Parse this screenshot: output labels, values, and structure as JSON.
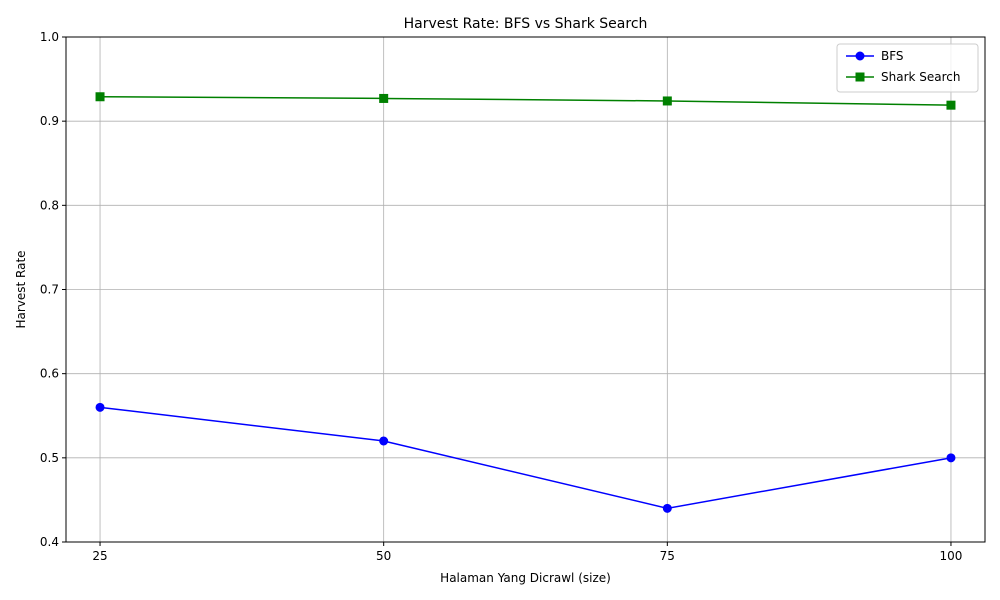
{
  "chart_data": {
    "type": "line",
    "title": "Harvest Rate: BFS vs Shark Search",
    "xlabel": "Halaman Yang Dicrawl (size)",
    "ylabel": "Harvest Rate",
    "x": [
      25,
      50,
      75,
      100
    ],
    "x_tick_labels": [
      "25",
      "50",
      "75",
      "100"
    ],
    "ylim": [
      0.4,
      1.0
    ],
    "y_ticks": [
      0.4,
      0.5,
      0.6,
      0.7,
      0.8,
      0.9,
      1.0
    ],
    "y_tick_labels": [
      "0.4",
      "0.5",
      "0.6",
      "0.7",
      "0.8",
      "0.9",
      "1.0"
    ],
    "grid": true,
    "legend_position": "top-right",
    "series": [
      {
        "name": "BFS",
        "values": [
          0.56,
          0.52,
          0.44,
          0.5
        ],
        "color": "#0000ff",
        "marker": "circle"
      },
      {
        "name": "Shark Search",
        "values": [
          0.929,
          0.927,
          0.924,
          0.919
        ],
        "color": "#008000",
        "marker": "square"
      }
    ]
  }
}
